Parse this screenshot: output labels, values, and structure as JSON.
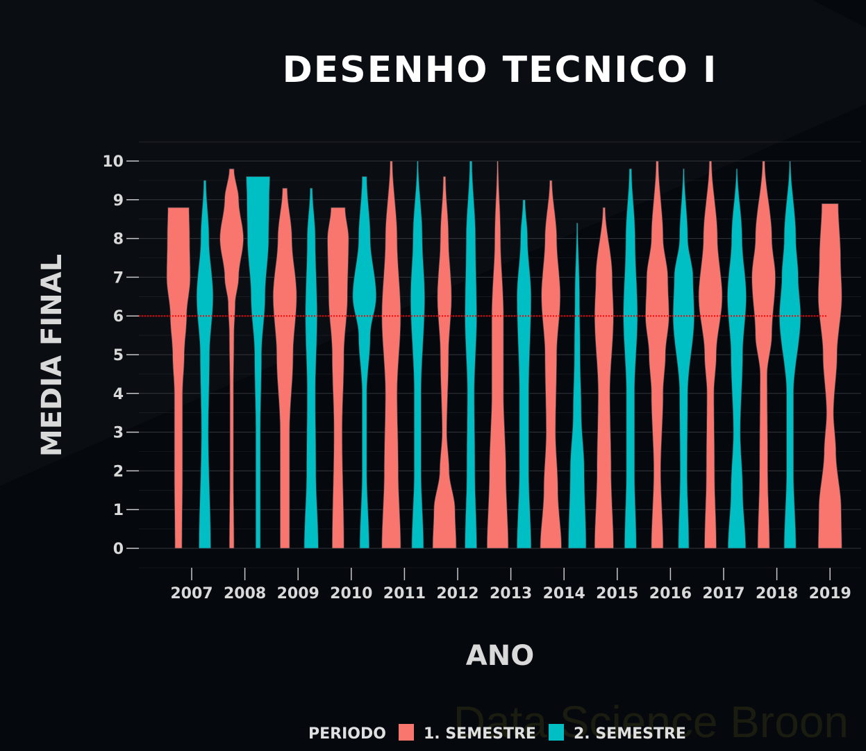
{
  "chart_data": {
    "type": "violin",
    "title": "DESENHO TECNICO I",
    "xlabel": "ANO",
    "ylabel": "MEDIA FINAL",
    "ylim": [
      0,
      10
    ],
    "yticks": [
      "0",
      "1",
      "2",
      "3",
      "4",
      "5",
      "6",
      "7",
      "8",
      "9",
      "10"
    ],
    "categories": [
      "2007",
      "2008",
      "2009",
      "2010",
      "2011",
      "2012",
      "2013",
      "2014",
      "2015",
      "2016",
      "2017",
      "2018",
      "2019"
    ],
    "reference_line": {
      "y": 6,
      "color": "#ff0000",
      "style": "dotted"
    },
    "legend": {
      "title": "PERIODO",
      "placement": "bottom"
    },
    "colors": {
      "s1": "#f8766d",
      "s2": "#00bfc4",
      "background": "#05080d",
      "grid": "#3a3d42"
    },
    "series": [
      {
        "name": "1. SEMESTRE",
        "violins": [
          {
            "x": "2007",
            "ymax": 8.8,
            "profile": [
              [
                0,
                0.3
              ],
              [
                2,
                0.35
              ],
              [
                4,
                0.35
              ],
              [
                5,
                0.5
              ],
              [
                6,
                0.7
              ],
              [
                7,
                1
              ],
              [
                8,
                0.95
              ],
              [
                8.8,
                0.9
              ]
            ]
          },
          {
            "x": "2008",
            "ymax": 9.8,
            "profile": [
              [
                0,
                0.2
              ],
              [
                2,
                0.15
              ],
              [
                4,
                0.15
              ],
              [
                5.5,
                0.2
              ],
              [
                6.3,
                0.3
              ],
              [
                7,
                0.6
              ],
              [
                8,
                1
              ],
              [
                9,
                0.6
              ],
              [
                9.8,
                0.2
              ]
            ]
          },
          {
            "x": "2009",
            "ymax": 9.3,
            "profile": [
              [
                0,
                0.4
              ],
              [
                3,
                0.4
              ],
              [
                5,
                0.7
              ],
              [
                6.5,
                1
              ],
              [
                8,
                0.6
              ],
              [
                9.3,
                0.2
              ]
            ]
          },
          {
            "x": "2010",
            "ymax": 8.8,
            "profile": [
              [
                0,
                0.5
              ],
              [
                3,
                0.35
              ],
              [
                5,
                0.5
              ],
              [
                6.5,
                0.8
              ],
              [
                8,
                0.9
              ],
              [
                8.8,
                0.6
              ]
            ]
          },
          {
            "x": "2011",
            "ymax": 10,
            "profile": [
              [
                0,
                0.8
              ],
              [
                2,
                0.6
              ],
              [
                4,
                0.5
              ],
              [
                6,
                0.8
              ],
              [
                8,
                0.5
              ],
              [
                10,
                0.1
              ]
            ]
          },
          {
            "x": "2012",
            "ymax": 9.6,
            "profile": [
              [
                0,
                1
              ],
              [
                1,
                0.9
              ],
              [
                2,
                0.4
              ],
              [
                3,
                0.2
              ],
              [
                5,
                0.35
              ],
              [
                6.5,
                0.6
              ],
              [
                8,
                0.35
              ],
              [
                9.6,
                0.1
              ]
            ]
          },
          {
            "x": "2013",
            "ymax": 10,
            "profile": [
              [
                0,
                0.9
              ],
              [
                2,
                0.7
              ],
              [
                4,
                0.5
              ],
              [
                6,
                0.5
              ],
              [
                8,
                0.25
              ],
              [
                10,
                0.05
              ]
            ]
          },
          {
            "x": "2014",
            "ymax": 9.5,
            "profile": [
              [
                0,
                0.9
              ],
              [
                1.5,
                0.6
              ],
              [
                3,
                0.4
              ],
              [
                5,
                0.5
              ],
              [
                6.5,
                0.8
              ],
              [
                8,
                0.5
              ],
              [
                9.5,
                0.1
              ]
            ]
          },
          {
            "x": "2015",
            "ymax": 8.8,
            "profile": [
              [
                0,
                0.8
              ],
              [
                2,
                0.6
              ],
              [
                4,
                0.5
              ],
              [
                6,
                0.8
              ],
              [
                7,
                0.7
              ],
              [
                8.8,
                0.1
              ]
            ]
          },
          {
            "x": "2016",
            "ymax": 10,
            "profile": [
              [
                0,
                0.5
              ],
              [
                2,
                0.3
              ],
              [
                4,
                0.5
              ],
              [
                5,
                0.7
              ],
              [
                6,
                1
              ],
              [
                7,
                0.9
              ],
              [
                8,
                0.5
              ],
              [
                10,
                0.1
              ]
            ]
          },
          {
            "x": "2017",
            "ymax": 10,
            "profile": [
              [
                0,
                0.5
              ],
              [
                2,
                0.35
              ],
              [
                4,
                0.3
              ],
              [
                5,
                0.5
              ],
              [
                6.5,
                1
              ],
              [
                8,
                0.6
              ],
              [
                10,
                0.1
              ]
            ]
          },
          {
            "x": "2018",
            "ymax": 10,
            "profile": [
              [
                0,
                0.5
              ],
              [
                2,
                0.35
              ],
              [
                4.5,
                0.3
              ],
              [
                5.5,
                0.7
              ],
              [
                7,
                1
              ],
              [
                8,
                0.7
              ],
              [
                10,
                0.1
              ]
            ]
          },
          {
            "x": "2019",
            "ymax": 8.9,
            "profile": [
              [
                0,
                1
              ],
              [
                1,
                0.95
              ],
              [
                2.5,
                0.5
              ],
              [
                3.5,
                0.3
              ],
              [
                5,
                0.6
              ],
              [
                6.5,
                1
              ],
              [
                7.5,
                0.9
              ],
              [
                8.9,
                0.7
              ]
            ]
          }
        ]
      },
      {
        "name": "2. SEMESTRE",
        "violins": [
          {
            "x": "2007",
            "ymax": 9.5,
            "profile": [
              [
                0,
                0.5
              ],
              [
                3,
                0.3
              ],
              [
                5,
                0.4
              ],
              [
                6.5,
                0.7
              ],
              [
                8,
                0.35
              ],
              [
                9.5,
                0.1
              ]
            ]
          },
          {
            "x": "2008",
            "ymax": 9.6,
            "profile": [
              [
                0,
                0.2
              ],
              [
                3,
                0.2
              ],
              [
                5,
                0.3
              ],
              [
                6.5,
                0.6
              ],
              [
                8,
                0.9
              ],
              [
                9,
                0.95
              ],
              [
                9.6,
                1
              ]
            ]
          },
          {
            "x": "2009",
            "ymax": 9.3,
            "profile": [
              [
                0,
                0.6
              ],
              [
                2,
                0.4
              ],
              [
                4,
                0.35
              ],
              [
                6,
                0.5
              ],
              [
                8,
                0.35
              ],
              [
                9.3,
                0.1
              ]
            ]
          },
          {
            "x": "2010",
            "ymax": 9.6,
            "profile": [
              [
                0,
                0.4
              ],
              [
                2,
                0.2
              ],
              [
                4,
                0.2
              ],
              [
                5.5,
                0.5
              ],
              [
                6.5,
                1
              ],
              [
                8,
                0.5
              ],
              [
                9.6,
                0.2
              ]
            ]
          },
          {
            "x": "2011",
            "ymax": 10,
            "profile": [
              [
                0,
                0.5
              ],
              [
                2,
                0.3
              ],
              [
                4,
                0.3
              ],
              [
                6.5,
                0.6
              ],
              [
                8,
                0.4
              ],
              [
                10,
                0.05
              ]
            ]
          },
          {
            "x": "2012",
            "ymax": 10,
            "profile": [
              [
                0,
                0.5
              ],
              [
                2,
                0.35
              ],
              [
                4,
                0.3
              ],
              [
                6,
                0.5
              ],
              [
                8,
                0.4
              ],
              [
                10,
                0.1
              ]
            ]
          },
          {
            "x": "2013",
            "ymax": 9.0,
            "profile": [
              [
                0,
                0.6
              ],
              [
                2,
                0.4
              ],
              [
                4,
                0.4
              ],
              [
                6.5,
                0.6
              ],
              [
                8,
                0.3
              ],
              [
                9,
                0.1
              ]
            ]
          },
          {
            "x": "2014",
            "ymax": 8.4,
            "profile": [
              [
                0,
                0.75
              ],
              [
                2,
                0.6
              ],
              [
                3.5,
                0.35
              ],
              [
                5,
                0.25
              ],
              [
                6.5,
                0.2
              ],
              [
                8.4,
                0.05
              ]
            ]
          },
          {
            "x": "2015",
            "ymax": 9.8,
            "profile": [
              [
                0,
                0.5
              ],
              [
                2,
                0.35
              ],
              [
                4,
                0.35
              ],
              [
                6,
                0.6
              ],
              [
                8,
                0.4
              ],
              [
                9.8,
                0.1
              ]
            ]
          },
          {
            "x": "2016",
            "ymax": 9.8,
            "profile": [
              [
                0,
                0.45
              ],
              [
                2,
                0.3
              ],
              [
                4,
                0.35
              ],
              [
                6,
                0.9
              ],
              [
                7,
                0.8
              ],
              [
                8,
                0.35
              ],
              [
                9.8,
                0.05
              ]
            ]
          },
          {
            "x": "2017",
            "ymax": 9.8,
            "profile": [
              [
                0,
                0.75
              ],
              [
                1.5,
                0.5
              ],
              [
                3,
                0.3
              ],
              [
                5,
                0.5
              ],
              [
                6.5,
                0.8
              ],
              [
                8,
                0.45
              ],
              [
                9.8,
                0.05
              ]
            ]
          },
          {
            "x": "2018",
            "ymax": 10,
            "profile": [
              [
                0,
                0.5
              ],
              [
                2,
                0.3
              ],
              [
                4,
                0.3
              ],
              [
                6,
                0.9
              ],
              [
                7,
                0.7
              ],
              [
                8,
                0.5
              ],
              [
                10,
                0.05
              ]
            ]
          }
        ]
      }
    ]
  },
  "watermark": "Data Science Broon"
}
